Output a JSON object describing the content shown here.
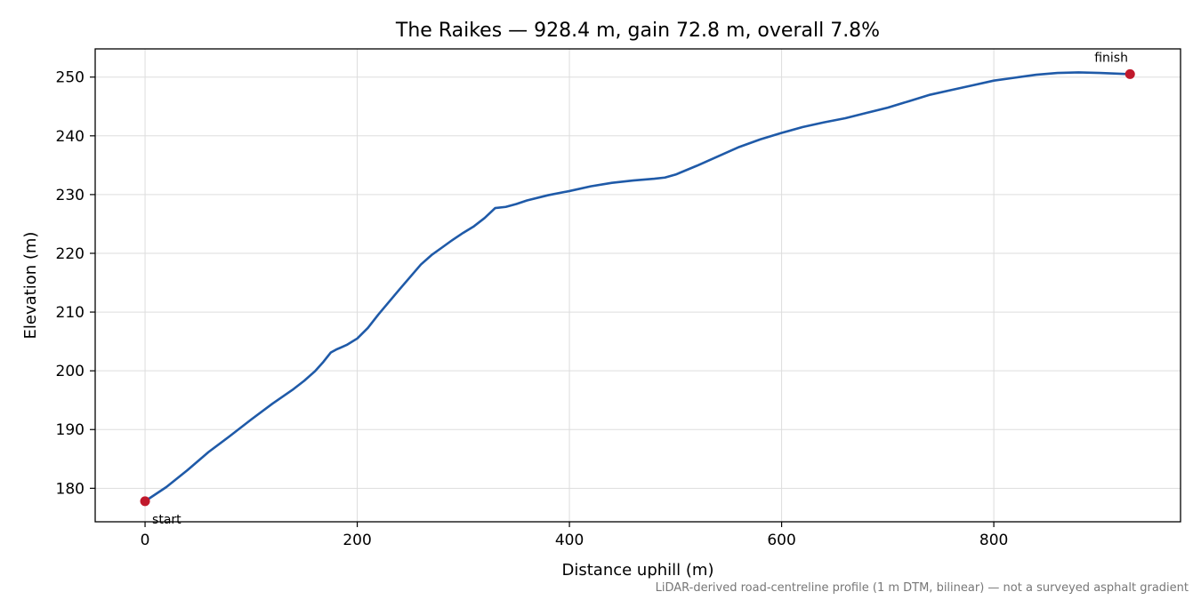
{
  "chart_data": {
    "type": "line",
    "title": "The Raikes — 928.4 m, gain 72.8 m, overall 7.8%",
    "xlabel": "Distance uphill (m)",
    "ylabel": "Elevation (m)",
    "xlim": [
      -47,
      976
    ],
    "ylim": [
      174.3,
      254.8
    ],
    "xticks": [
      0,
      200,
      400,
      600,
      800
    ],
    "yticks": [
      180,
      190,
      200,
      210,
      220,
      230,
      240,
      250
    ],
    "grid": true,
    "colors": {
      "line": "#1f5aa8",
      "markers": "#c0192c",
      "grid": "#dddddd",
      "footnote": "#777777"
    },
    "series": [
      {
        "x": [
          0,
          20,
          40,
          60,
          80,
          100,
          120,
          140,
          150,
          160,
          168,
          175,
          180,
          190,
          200,
          210,
          220,
          240,
          260,
          270,
          280,
          290,
          300,
          310,
          320,
          330,
          340,
          350,
          360,
          380,
          400,
          420,
          440,
          460,
          480,
          490,
          500,
          520,
          540,
          560,
          580,
          600,
          620,
          640,
          660,
          680,
          700,
          720,
          740,
          760,
          780,
          800,
          820,
          840,
          860,
          880,
          900,
          928.4
        ],
        "y": [
          177.8,
          180.2,
          183.1,
          186.2,
          188.9,
          191.7,
          194.4,
          196.9,
          198.3,
          199.9,
          201.5,
          203.1,
          203.6,
          204.4,
          205.5,
          207.3,
          209.6,
          213.9,
          218.1,
          219.7,
          221.0,
          222.3,
          223.5,
          224.6,
          226.0,
          227.7,
          227.9,
          228.4,
          229.0,
          229.9,
          230.6,
          231.4,
          232.0,
          232.4,
          232.7,
          232.9,
          233.4,
          234.9,
          236.5,
          238.1,
          239.4,
          240.5,
          241.5,
          242.3,
          243.0,
          243.9,
          244.8,
          245.9,
          247.0,
          247.8,
          248.6,
          249.4,
          249.9,
          250.4,
          250.7,
          250.8,
          250.7,
          250.5
        ]
      }
    ],
    "annotations": [
      {
        "label": "start",
        "x": 0,
        "y": 177.8
      },
      {
        "label": "finish",
        "x": 928.4,
        "y": 250.5
      }
    ],
    "footnote": "LiDAR-derived road-centreline profile (1 m DTM, bilinear) — not a surveyed asphalt gradient"
  }
}
